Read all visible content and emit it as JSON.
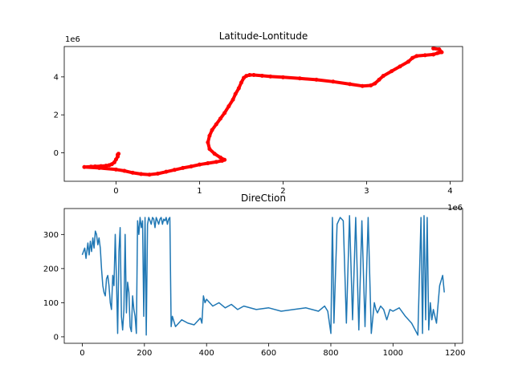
{
  "colors": {
    "scatter": "#ff0000",
    "line": "#1f77b4",
    "axes": "#000000",
    "background": "#ffffff"
  },
  "chart_data": [
    {
      "type": "scatter",
      "title": "Latitude-Lontitude",
      "xlabel": "",
      "ylabel": "",
      "x_offset_label": "1e6",
      "y_offset_label": "1e6",
      "x_tick_labels": [
        "0",
        "1",
        "2",
        "3",
        "4"
      ],
      "y_tick_labels": [
        "0",
        "2",
        "4"
      ],
      "x_ticks": [
        0,
        1,
        2,
        3,
        4
      ],
      "y_ticks": [
        0,
        2,
        4
      ],
      "xlim": [
        -0.62,
        4.15
      ],
      "ylim": [
        -1.5,
        5.6
      ],
      "grid": false,
      "series": [
        {
          "x": [
            0.02,
            0.03,
            0.02,
            0.0,
            -0.02,
            -0.05,
            -0.08,
            -0.12,
            -0.18,
            -0.25,
            -0.3,
            -0.38,
            -0.2,
            0.0,
            0.1,
            0.2,
            0.3,
            0.4,
            0.5,
            0.6,
            0.7,
            0.8,
            0.9,
            1.0,
            1.1,
            1.2,
            1.27,
            1.3,
            1.25,
            1.18,
            1.12,
            1.1,
            1.12,
            1.15,
            1.2,
            1.25,
            1.3,
            1.35,
            1.4,
            1.43,
            1.47,
            1.5,
            1.53,
            1.56,
            1.6,
            1.65,
            1.75,
            1.85,
            2.0,
            2.2,
            2.4,
            2.6,
            2.8,
            2.95,
            3.05,
            3.1,
            3.15,
            3.2,
            3.3,
            3.4,
            3.5,
            3.55,
            3.6,
            3.7,
            3.8,
            3.85,
            3.9,
            3.87,
            3.8
          ],
          "y": [
            -0.1,
            -0.05,
            -0.2,
            -0.35,
            -0.5,
            -0.6,
            -0.65,
            -0.68,
            -0.7,
            -0.72,
            -0.73,
            -0.75,
            -0.8,
            -0.88,
            -0.95,
            -1.05,
            -1.12,
            -1.15,
            -1.1,
            -1.0,
            -0.9,
            -0.8,
            -0.72,
            -0.62,
            -0.55,
            -0.48,
            -0.42,
            -0.37,
            -0.25,
            -0.05,
            0.2,
            0.55,
            0.9,
            1.2,
            1.5,
            1.8,
            2.1,
            2.45,
            2.8,
            3.1,
            3.4,
            3.7,
            3.95,
            4.05,
            4.1,
            4.1,
            4.06,
            4.02,
            3.98,
            3.92,
            3.85,
            3.75,
            3.62,
            3.52,
            3.55,
            3.65,
            3.85,
            4.05,
            4.3,
            4.55,
            4.8,
            5.0,
            5.1,
            5.14,
            5.18,
            5.25,
            5.3,
            5.45,
            5.5
          ]
        }
      ]
    },
    {
      "type": "line",
      "title": "DireCtion",
      "xlabel": "",
      "ylabel": "",
      "x_tick_labels": [
        "0",
        "200",
        "400",
        "600",
        "800",
        "1000",
        "1200"
      ],
      "y_tick_labels": [
        "0",
        "100",
        "200",
        "300"
      ],
      "x_ticks": [
        0,
        200,
        400,
        600,
        800,
        1000,
        1200
      ],
      "y_ticks": [
        0,
        100,
        200,
        300
      ],
      "xlim": [
        -58,
        1224
      ],
      "ylim": [
        -19,
        376
      ],
      "grid": false,
      "series": [
        {
          "x": [
            0,
            8,
            12,
            18,
            22,
            26,
            30,
            34,
            38,
            42,
            46,
            50,
            54,
            58,
            62,
            66,
            70,
            74,
            78,
            82,
            86,
            90,
            94,
            98,
            102,
            106,
            110,
            114,
            118,
            122,
            126,
            130,
            134,
            138,
            142,
            146,
            150,
            154,
            158,
            162,
            166,
            170,
            174,
            178,
            182,
            186,
            190,
            194,
            198,
            202,
            206,
            210,
            214,
            218,
            222,
            226,
            230,
            234,
            238,
            242,
            246,
            250,
            254,
            258,
            262,
            266,
            270,
            274,
            278,
            282,
            286,
            290,
            300,
            320,
            340,
            360,
            380,
            385,
            390,
            395,
            400,
            420,
            440,
            460,
            480,
            500,
            520,
            560,
            600,
            640,
            680,
            720,
            760,
            780,
            790,
            800,
            805,
            810,
            820,
            830,
            840,
            850,
            860,
            870,
            880,
            890,
            900,
            910,
            920,
            930,
            940,
            945,
            950,
            960,
            970,
            980,
            990,
            1000,
            1020,
            1040,
            1060,
            1080,
            1090,
            1095,
            1100,
            1105,
            1110,
            1115,
            1120,
            1125,
            1130,
            1140,
            1150,
            1160,
            1165
          ],
          "y": [
            240,
            260,
            230,
            275,
            240,
            280,
            250,
            290,
            260,
            310,
            300,
            270,
            290,
            260,
            200,
            150,
            130,
            120,
            170,
            180,
            150,
            100,
            80,
            180,
            150,
            300,
            170,
            10,
            250,
            320,
            60,
            20,
            80,
            300,
            70,
            160,
            130,
            30,
            15,
            120,
            80,
            60,
            10,
            340,
            300,
            350,
            320,
            340,
            60,
            350,
            5,
            330,
            350,
            340,
            330,
            350,
            345,
            320,
            350,
            340,
            330,
            345,
            350,
            330,
            345,
            340,
            350,
            330,
            345,
            350,
            30,
            60,
            30,
            50,
            40,
            35,
            55,
            40,
            120,
            100,
            110,
            90,
            100,
            85,
            95,
            80,
            90,
            80,
            85,
            75,
            80,
            85,
            75,
            90,
            75,
            10,
            350,
            40,
            330,
            350,
            340,
            40,
            355,
            50,
            350,
            20,
            340,
            30,
            350,
            10,
            100,
            80,
            70,
            90,
            80,
            50,
            80,
            75,
            85,
            60,
            40,
            5,
            350,
            10,
            355,
            50,
            350,
            20,
            100,
            50,
            80,
            40,
            150,
            180,
            130
          ]
        }
      ]
    }
  ]
}
